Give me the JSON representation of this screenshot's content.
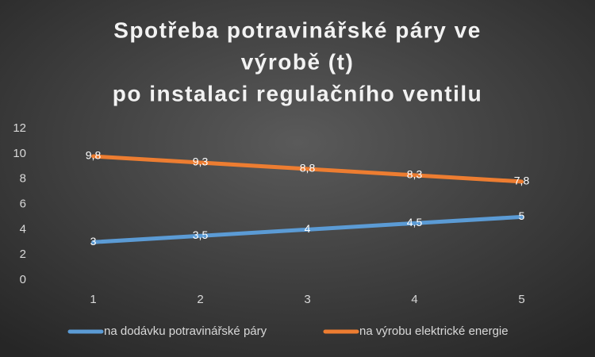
{
  "chart_data": {
    "type": "line",
    "title": [
      "Spotřeba potravinářské páry ve",
      "výrobě (t)",
      "po instalaci regulačního ventilu"
    ],
    "categories": [
      "1",
      "2",
      "3",
      "4",
      "5"
    ],
    "series": [
      {
        "name": "na dodávku potravinářské páry",
        "color": "#5b9bd5",
        "values": [
          3,
          3.5,
          4,
          4.5,
          5
        ],
        "value_labels": [
          "3",
          "3,5",
          "4",
          "4,5",
          "5"
        ]
      },
      {
        "name": "na výrobu elektrické energie",
        "color": "#ed7d31",
        "values": [
          9.8,
          9.3,
          8.8,
          8.3,
          7.8
        ],
        "value_labels": [
          "9,8",
          "9,3",
          "8,8",
          "8,3",
          "7,8"
        ]
      }
    ],
    "ylim": [
      0,
      12
    ],
    "yticks": [
      0,
      2,
      4,
      6,
      8,
      10,
      12
    ],
    "grid": false,
    "legend": "bottom"
  }
}
